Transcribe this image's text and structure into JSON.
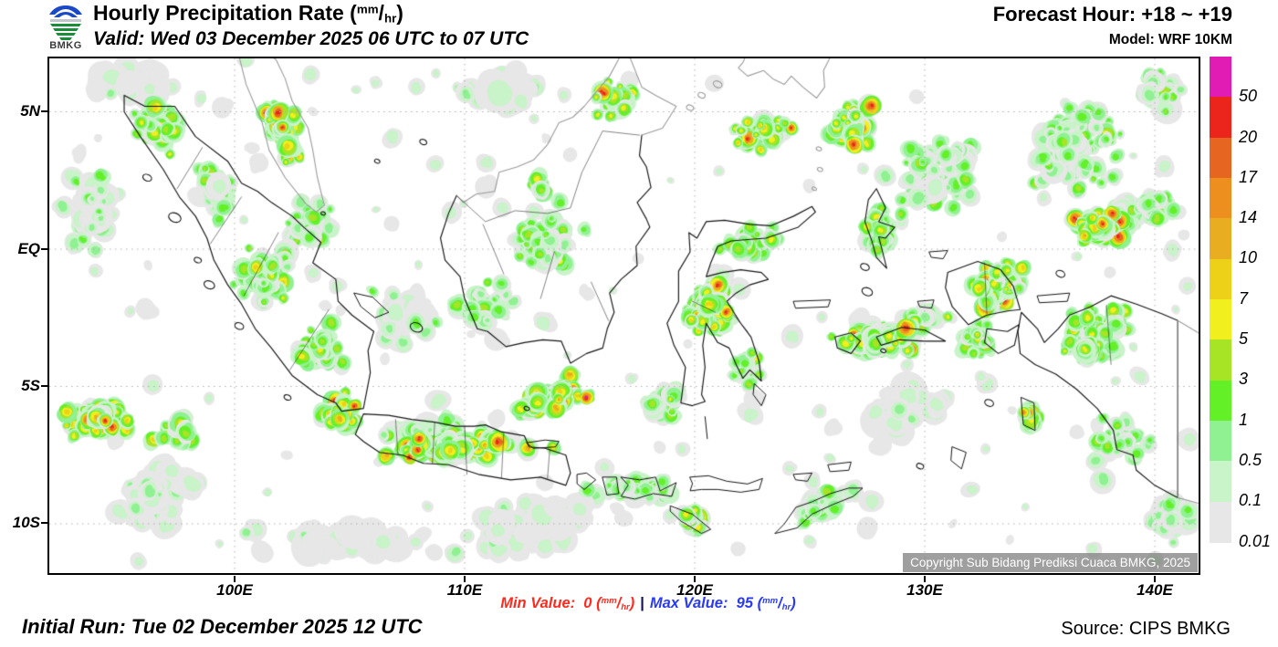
{
  "header": {
    "logo_text": "BMKG",
    "title": "Hourly Precipitation Rate",
    "unit": {
      "open": "(",
      "sup": "mm",
      "slash": "/",
      "sub": "hr",
      "close": ")"
    },
    "valid": "Valid: Wed 03 December 2025 06 UTC to 07 UTC",
    "forecast_hour": "Forecast Hour: +18 ~ +19",
    "model": "Model: WRF 10KM"
  },
  "map": {
    "lat_ticks": [
      "5N",
      "EQ",
      "5S",
      "10S"
    ],
    "lon_ticks": [
      "100E",
      "110E",
      "120E",
      "130E",
      "140E"
    ],
    "watermark": "Copyright Sub Bidang Prediksi Cuaca BMKG, 2025"
  },
  "legend": {
    "values": [
      "50",
      "20",
      "17",
      "14",
      "10",
      "7",
      "5",
      "3",
      "1",
      "0.5",
      "0.1",
      "0.01"
    ],
    "colors": [
      "#E01CB5",
      "#EB241C",
      "#E66621",
      "#EC8F1E",
      "#E8AD20",
      "#ECD118",
      "#F2EF1F",
      "#A7E426",
      "#63F027",
      "#8FF191",
      "#C9F3C9",
      "#E7E7E7"
    ]
  },
  "stats": {
    "min_label": "Min Value:",
    "min_value": "0",
    "separator": "|",
    "max_label": "Max Value:",
    "max_value": "95",
    "unit": {
      "open": "(",
      "sup": "mm",
      "slash": "/",
      "sub": "hr",
      "close": ")"
    },
    "min_color": "#FF2A1E",
    "max_color": "#2B3BEF",
    "separator_color": "#101060"
  },
  "footer": {
    "initial_run": "Initial Run: Tue 02 December 2025 12 UTC",
    "source": "Source: CIPS BMKG"
  }
}
